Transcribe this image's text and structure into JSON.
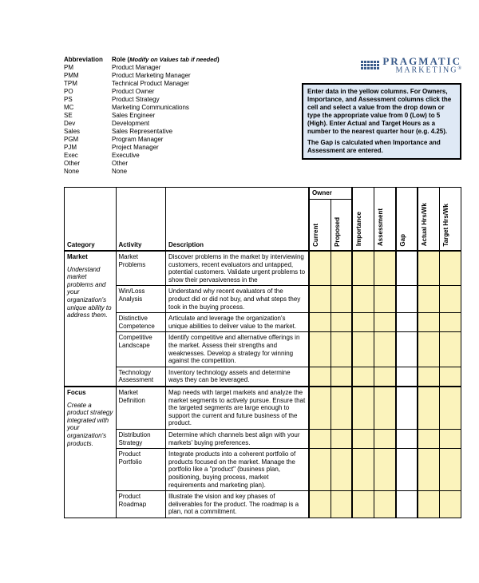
{
  "abbrevHeader": {
    "a": "Abbreviation",
    "b": "Role (",
    "note": "Modify on Values tab if needed",
    "close": ")"
  },
  "abbrevs": [
    {
      "a": "PM",
      "b": "Product Manager"
    },
    {
      "a": "PMM",
      "b": "Product Marketing Manager"
    },
    {
      "a": "TPM",
      "b": "Technical Product Manager"
    },
    {
      "a": "PO",
      "b": "Product Owner"
    },
    {
      "a": "PS",
      "b": "Product Strategy"
    },
    {
      "a": "MC",
      "b": "Marketing Communications"
    },
    {
      "a": "SE",
      "b": "Sales Engineer"
    },
    {
      "a": "Dev",
      "b": "Development"
    },
    {
      "a": "Sales",
      "b": "Sales Representative"
    },
    {
      "a": "PGM",
      "b": "Program Manager"
    },
    {
      "a": "PJM",
      "b": "Project Manager"
    },
    {
      "a": "Exec",
      "b": "Executive"
    },
    {
      "a": "Other",
      "b": "Other"
    },
    {
      "a": "None",
      "b": "None"
    }
  ],
  "logo": {
    "l1": "PRAGMATIC",
    "l2": "MARKETING",
    "reg": "®"
  },
  "instructions": {
    "p1a": "Enter data in the yellow columns. For Owners, Importance, and Assessment columns click the cell and select a value from the drop down or type the appropriate value from 0 (Low) to 5 (High). Enter Actual and Target Hours as a number to the nearest quarter hour (e.g. 4.25).",
    "p2": "The Gap is calculated when Importance and Assessment are entered."
  },
  "headers": {
    "category": "Category",
    "activity": "Activity",
    "description": "Description",
    "owner": "Owner",
    "current": "Current",
    "proposed": "Proposed",
    "importance": "Importance",
    "assessment": "Assessment",
    "gap": "Gap",
    "actual": "Actual Hrs/Wk",
    "target": "Target Hrs/Wk"
  },
  "categories": [
    {
      "name": "Market",
      "desc": "Understand market problems and your organization's unique ability to address them.",
      "rows": [
        {
          "activity": "Market Problems",
          "desc": "Discover problems in the market by interviewing customers, recent evaluators and untapped, potential customers. Validate urgent problems to show their pervasiveness in the"
        },
        {
          "activity": "Win/Loss Analysis",
          "desc": "Understand why recent evaluators of the product did or did not buy, and what steps they took in the buying process."
        },
        {
          "activity": "Distinctive Competence",
          "desc": "Articulate and leverage the organization's unique abilities to deliver value to the market."
        },
        {
          "activity": "Competitive Landscape",
          "desc": "Identify competitive and alternative offerings in the market. Assess their strengths and weaknesses. Develop a strategy for winning against the competition."
        },
        {
          "activity": "Technology Assessment",
          "desc": "Inventory technology assets and determine ways they can be leveraged."
        }
      ]
    },
    {
      "name": "Focus",
      "desc": "Create a product strategy integrated with your organization's products.",
      "rows": [
        {
          "activity": "Market Definition",
          "desc": "Map needs with target markets and analyze the market segments to actively pursue. Ensure that the targeted segments are large enough to support the current and future business of the product."
        },
        {
          "activity": "Distribution Strategy",
          "desc": "Determine which channels best align with your markets' buying preferences."
        },
        {
          "activity": "Product Portfolio",
          "desc": "Integrate products into a coherent portfolio of products focused on the market. Manage the portfolio like a \"product\" (business plan, positioning, buying process, market requirements and marketing plan)."
        },
        {
          "activity": "Product Roadmap",
          "desc": "Illustrate the vision and key phases of deliverables for the product. The roadmap is a plan, not a commitment."
        }
      ]
    }
  ]
}
